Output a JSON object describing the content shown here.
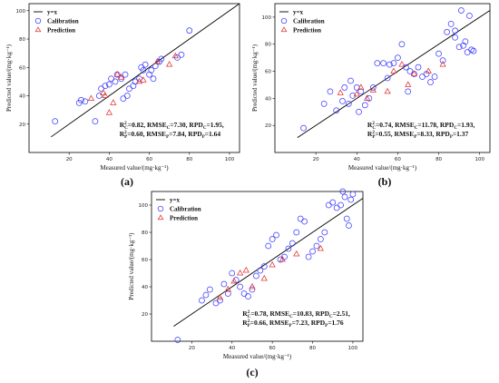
{
  "chart_data": [
    {
      "type": "scatter",
      "sublabel": "(a)",
      "xlabel": "Measured value/(mg·kg⁻¹)",
      "ylabel": "Predicted value/(mg·kg⁻¹)",
      "xlim": [
        0,
        105
      ],
      "ylim": [
        0,
        105
      ],
      "xticks": [
        20,
        40,
        60,
        80,
        100
      ],
      "yticks": [
        20,
        40,
        60,
        80,
        100
      ],
      "grid": false,
      "legend_position": "top-left",
      "reference_line": {
        "name": "y=x"
      },
      "annotation": [
        [
          "R",
          "2",
          "C",
          "=0.82, RMSE",
          "C",
          "=7.30, RPD",
          "C",
          "=1.95,"
        ],
        [
          "R",
          "2",
          "P",
          "=0.60, RMSE",
          "P",
          "=7.84, RPD",
          "P",
          "=1.64"
        ]
      ],
      "series": [
        {
          "name": "Calibration",
          "marker": "circle",
          "color": "#3c3cff",
          "points": [
            [
              13,
              22
            ],
            [
              25,
              35
            ],
            [
              26,
              37
            ],
            [
              28,
              36
            ],
            [
              33,
              22
            ],
            [
              35,
              40
            ],
            [
              36,
              45
            ],
            [
              38,
              47
            ],
            [
              40,
              48
            ],
            [
              41,
              52
            ],
            [
              43,
              50
            ],
            [
              44,
              55
            ],
            [
              46,
              52
            ],
            [
              47,
              38
            ],
            [
              49,
              40
            ],
            [
              50,
              45
            ],
            [
              53,
              50
            ],
            [
              55,
              52
            ],
            [
              56,
              60
            ],
            [
              57,
              58
            ],
            [
              58,
              62
            ],
            [
              60,
              55
            ],
            [
              61,
              58
            ],
            [
              62,
              52
            ],
            [
              63,
              61
            ],
            [
              65,
              64
            ],
            [
              66,
              66
            ],
            [
              74,
              67
            ],
            [
              76,
              69
            ],
            [
              80,
              86
            ],
            [
              48,
              55
            ],
            [
              52,
              47
            ]
          ]
        },
        {
          "name": "Prediction",
          "marker": "triangle",
          "color": "#e03030",
          "points": [
            [
              31,
              38
            ],
            [
              38,
              40
            ],
            [
              40,
              28
            ],
            [
              42,
              35
            ],
            [
              44,
              55
            ],
            [
              46,
              53
            ],
            [
              55,
              50
            ],
            [
              57,
              51
            ],
            [
              64,
              64
            ],
            [
              70,
              62
            ],
            [
              73,
              68
            ],
            [
              37,
              42
            ]
          ]
        }
      ]
    },
    {
      "type": "scatter",
      "sublabel": "(b)",
      "xlabel": "Measured value/(mg·kg⁻¹)",
      "ylabel": "Predicted value/(mg·kg⁻¹)",
      "xlim": [
        0,
        105
      ],
      "ylim": [
        0,
        110
      ],
      "xticks": [
        20,
        40,
        60,
        80,
        100
      ],
      "yticks": [
        20,
        40,
        60,
        80,
        100
      ],
      "grid": false,
      "legend_position": "top-left",
      "reference_line": {
        "name": "y=x"
      },
      "annotation": [
        [
          "R",
          "2",
          "C",
          "=0.74, RMSE",
          "C",
          "=11.78, RPD",
          "C",
          "=1.93,"
        ],
        [
          "R",
          "2",
          "P",
          "=0.55, RMSE",
          "P",
          "=8.33, RPD",
          "P",
          "=1.37"
        ]
      ],
      "series": [
        {
          "name": "Calibration",
          "marker": "circle",
          "color": "#3c3cff",
          "points": [
            [
              14,
              18
            ],
            [
              24,
              36
            ],
            [
              27,
              45
            ],
            [
              30,
              31
            ],
            [
              33,
              38
            ],
            [
              34,
              48
            ],
            [
              36,
              36
            ],
            [
              37,
              53
            ],
            [
              38,
              42
            ],
            [
              40,
              48
            ],
            [
              41,
              30
            ],
            [
              42,
              45
            ],
            [
              44,
              35
            ],
            [
              46,
              40
            ],
            [
              48,
              48
            ],
            [
              50,
              66
            ],
            [
              53,
              66
            ],
            [
              55,
              55
            ],
            [
              56,
              65
            ],
            [
              58,
              66
            ],
            [
              60,
              70
            ],
            [
              62,
              80
            ],
            [
              64,
              63
            ],
            [
              65,
              45
            ],
            [
              66,
              60
            ],
            [
              68,
              58
            ],
            [
              70,
              63
            ],
            [
              72,
              56
            ],
            [
              74,
              58
            ],
            [
              76,
              52
            ],
            [
              78,
              56
            ],
            [
              80,
              73
            ],
            [
              82,
              68
            ],
            [
              84,
              89
            ],
            [
              86,
              95
            ],
            [
              88,
              90
            ],
            [
              90,
              78
            ],
            [
              91,
              105
            ],
            [
              92,
              79
            ],
            [
              93,
              82
            ],
            [
              94,
              74
            ],
            [
              95,
              101
            ],
            [
              96,
              76
            ],
            [
              97,
              75
            ],
            [
              88,
              85
            ]
          ]
        },
        {
          "name": "Prediction",
          "marker": "triangle",
          "color": "#e03030",
          "points": [
            [
              32,
              44
            ],
            [
              40,
              43
            ],
            [
              42,
              48
            ],
            [
              45,
              40
            ],
            [
              48,
              46
            ],
            [
              55,
              45
            ],
            [
              58,
              60
            ],
            [
              62,
              65
            ],
            [
              65,
              50
            ],
            [
              75,
              60
            ],
            [
              82,
              65
            ],
            [
              68,
              58
            ]
          ]
        }
      ]
    },
    {
      "type": "scatter",
      "sublabel": "(c)",
      "xlabel": "Measured value/(mg·kg⁻¹)",
      "ylabel": "Predicted value/(mg·kg⁻¹)",
      "xlim": [
        0,
        105
      ],
      "ylim": [
        0,
        110
      ],
      "xticks": [
        20,
        40,
        60,
        80,
        100
      ],
      "yticks": [
        20,
        40,
        60,
        80,
        100
      ],
      "grid": false,
      "legend_position": "top-left",
      "reference_line": {
        "name": "y=x"
      },
      "annotation": [
        [
          "R",
          "2",
          "C",
          "=0.78, RMSE",
          "C",
          "=10.83, RPD",
          "C",
          "=2.51,"
        ],
        [
          "R",
          "2",
          "P",
          "=0.66, RMSE",
          "P",
          "=7.23, RPD",
          "P",
          "=1.76"
        ]
      ],
      "series": [
        {
          "name": "Calibration",
          "marker": "circle",
          "color": "#3c3cff",
          "points": [
            [
              13,
              1
            ],
            [
              25,
              30
            ],
            [
              27,
              34
            ],
            [
              29,
              38
            ],
            [
              32,
              28
            ],
            [
              34,
              30
            ],
            [
              36,
              42
            ],
            [
              38,
              35
            ],
            [
              40,
              50
            ],
            [
              42,
              45
            ],
            [
              44,
              40
            ],
            [
              46,
              35
            ],
            [
              48,
              33
            ],
            [
              50,
              38
            ],
            [
              52,
              48
            ],
            [
              54,
              52
            ],
            [
              56,
              55
            ],
            [
              58,
              70
            ],
            [
              60,
              75
            ],
            [
              62,
              78
            ],
            [
              64,
              60
            ],
            [
              66,
              62
            ],
            [
              68,
              68
            ],
            [
              70,
              72
            ],
            [
              72,
              80
            ],
            [
              74,
              90
            ],
            [
              76,
              88
            ],
            [
              78,
              62
            ],
            [
              80,
              66
            ],
            [
              82,
              70
            ],
            [
              84,
              75
            ],
            [
              86,
              80
            ],
            [
              88,
              100
            ],
            [
              90,
              102
            ],
            [
              92,
              98
            ],
            [
              94,
              100
            ],
            [
              95,
              110
            ],
            [
              96,
              106
            ],
            [
              97,
              90
            ],
            [
              98,
              85
            ],
            [
              99,
              104
            ],
            [
              100,
              108
            ]
          ]
        },
        {
          "name": "Prediction",
          "marker": "triangle",
          "color": "#e03030",
          "points": [
            [
              34,
              32
            ],
            [
              38,
              38
            ],
            [
              41,
              44
            ],
            [
              44,
              50
            ],
            [
              47,
              52
            ],
            [
              50,
              40
            ],
            [
              56,
              46
            ],
            [
              60,
              56
            ],
            [
              65,
              60
            ],
            [
              72,
              64
            ],
            [
              84,
              68
            ]
          ]
        }
      ]
    }
  ]
}
